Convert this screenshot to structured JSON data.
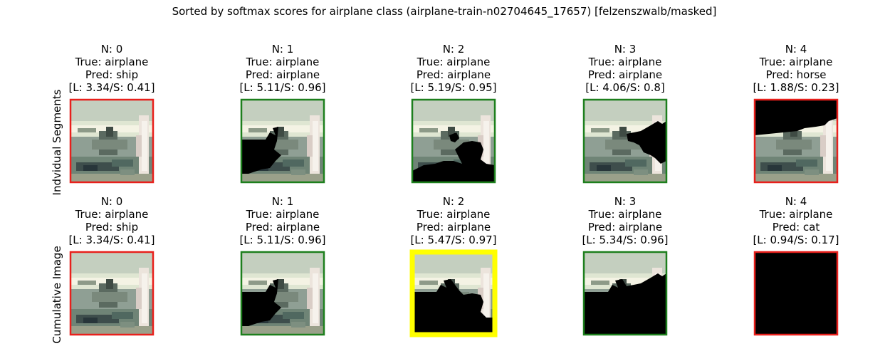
{
  "figure_title": "Sorted by softmax scores for airplane class (airplane-train-n02704645_17657) [felzenszwalb/masked]",
  "chart_data": {
    "type": "image-grid",
    "title": "Sorted by softmax scores for airplane class (airplane-train-n02704645_17657) [felzenszwalb/masked]",
    "rows": [
      {
        "label": "Indvidual Segments",
        "panels": [
          {
            "n": "N: 0",
            "true": "True: airplane",
            "pred": "Pred: ship",
            "scores": "[L: 3.34/S: 0.41]",
            "logit": 3.34,
            "softmax": 0.41,
            "border": "#e8201c",
            "mask": "none"
          },
          {
            "n": "N: 1",
            "true": "True: airplane",
            "pred": "Pred: airplane",
            "scores": "[L: 5.11/S: 0.96]",
            "logit": 5.11,
            "softmax": 0.96,
            "border": "#1d7f1d",
            "mask": "seg1"
          },
          {
            "n": "N: 2",
            "true": "True: airplane",
            "pred": "Pred: airplane",
            "scores": "[L: 5.19/S: 0.95]",
            "logit": 5.19,
            "softmax": 0.95,
            "border": "#1d7f1d",
            "mask": "seg2"
          },
          {
            "n": "N: 3",
            "true": "True: airplane",
            "pred": "Pred: airplane",
            "scores": "[L: 4.06/S: 0.8]",
            "logit": 4.06,
            "softmax": 0.8,
            "border": "#1d7f1d",
            "mask": "seg3"
          },
          {
            "n": "N: 4",
            "true": "True: airplane",
            "pred": "Pred: horse",
            "scores": "[L: 1.88/S: 0.23]",
            "logit": 1.88,
            "softmax": 0.23,
            "border": "#e8201c",
            "mask": "seg4"
          }
        ]
      },
      {
        "label": "Cumulative Image",
        "panels": [
          {
            "n": "N: 0",
            "true": "True: airplane",
            "pred": "Pred: ship",
            "scores": "[L: 3.34/S: 0.41]",
            "logit": 3.34,
            "softmax": 0.41,
            "border": "#e8201c",
            "mask": "none"
          },
          {
            "n": "N: 1",
            "true": "True: airplane",
            "pred": "Pred: airplane",
            "scores": "[L: 5.11/S: 0.96]",
            "logit": 5.11,
            "softmax": 0.96,
            "border": "#1d7f1d",
            "mask": "seg1"
          },
          {
            "n": "N: 2",
            "true": "True: airplane",
            "pred": "Pred: airplane",
            "scores": "[L: 5.47/S: 0.97]",
            "logit": 5.47,
            "softmax": 0.97,
            "border": "#ffff00",
            "highlight": true,
            "mask": "cum2"
          },
          {
            "n": "N: 3",
            "true": "True: airplane",
            "pred": "Pred: airplane",
            "scores": "[L: 5.34/S: 0.96]",
            "logit": 5.34,
            "softmax": 0.96,
            "border": "#1d7f1d",
            "mask": "cum3"
          },
          {
            "n": "N: 4",
            "true": "True: airplane",
            "pred": "Pred: cat",
            "scores": "[L: 0.94/S: 0.17]",
            "logit": 0.94,
            "softmax": 0.17,
            "border": "#e8201c",
            "mask": "full"
          }
        ]
      }
    ],
    "colors": {
      "correct": "#1d7f1d",
      "incorrect": "#e8201c",
      "best": "#ffff00"
    }
  }
}
